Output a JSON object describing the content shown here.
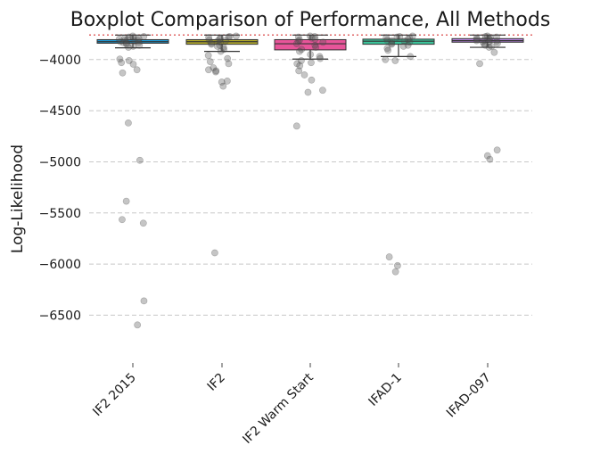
{
  "chart_data": {
    "type": "boxplot",
    "title": "Boxplot Comparison of Performance, All Methods",
    "xlabel": "",
    "ylabel": "Log-Likelihood",
    "ylim": [
      -6880,
      -3740
    ],
    "yticks": [
      -4000,
      -4500,
      -5000,
      -5500,
      -6000,
      -6500
    ],
    "ytick_labels": [
      "−4000",
      "−4500",
      "−5000",
      "−5500",
      "−6000",
      "−6500"
    ],
    "grid": "horizontal dashed",
    "reference_line": {
      "y": -3760,
      "style": "dotted",
      "color": "#e06666"
    },
    "categories": [
      "IF2 2015",
      "IF2",
      "IF2 Warm Start",
      "IFAD-1",
      "IFAD-097"
    ],
    "boxes": [
      {
        "name": "IF2 2015",
        "color": "#1f9ad6",
        "q1": -3840,
        "median": -3825,
        "q3": -3805,
        "whisker_low": -3885,
        "whisker_high": -3760,
        "points": [
          -3770,
          -3775,
          -3780,
          -3785,
          -3790,
          -3795,
          -3800,
          -3805,
          -3810,
          -3815,
          -3820,
          -3825,
          -3830,
          -3835,
          -3840,
          -3850,
          -3860,
          -3870,
          -3880,
          -3995,
          -4010,
          -4030,
          -4045,
          -4100,
          -4130,
          -4620,
          -4985,
          -5385,
          -5565,
          -5600,
          -6360,
          -6595
        ]
      },
      {
        "name": "IF2",
        "color": "#b5ad2c",
        "q1": -3850,
        "median": -3825,
        "q3": -3805,
        "whisker_low": -3920,
        "whisker_high": -3760,
        "points": [
          -3770,
          -3775,
          -3780,
          -3785,
          -3790,
          -3800,
          -3810,
          -3815,
          -3820,
          -3830,
          -3840,
          -3850,
          -3860,
          -3870,
          -3880,
          -3900,
          -3920,
          -3960,
          -3990,
          -4020,
          -4040,
          -4080,
          -4100,
          -4110,
          -4120,
          -4210,
          -4220,
          -4260,
          -5890
        ]
      },
      {
        "name": "IF2 Warm Start",
        "color": "#e8559a",
        "q1": -3905,
        "median": -3845,
        "q3": -3805,
        "whisker_low": -3995,
        "whisker_high": -3760,
        "points": [
          -3770,
          -3775,
          -3780,
          -3790,
          -3800,
          -3810,
          -3820,
          -3830,
          -3845,
          -3860,
          -3880,
          -3900,
          -3920,
          -3950,
          -3970,
          -3990,
          -4010,
          -4030,
          -4040,
          -4060,
          -4110,
          -4150,
          -4200,
          -4300,
          -4320,
          -4650
        ]
      },
      {
        "name": "IFAD-1",
        "color": "#3cc39a",
        "q1": -3850,
        "median": -3820,
        "q3": -3800,
        "whisker_low": -3970,
        "whisker_high": -3760,
        "points": [
          -3770,
          -3775,
          -3780,
          -3785,
          -3790,
          -3800,
          -3810,
          -3815,
          -3820,
          -3830,
          -3840,
          -3850,
          -3860,
          -3870,
          -3890,
          -3910,
          -3970,
          -4000,
          -4010,
          -5930,
          -6015,
          -6075
        ]
      },
      {
        "name": "IFAD-097",
        "color": "#b985e0",
        "q1": -3830,
        "median": -3815,
        "q3": -3795,
        "whisker_low": -3880,
        "whisker_high": -3760,
        "points": [
          -3770,
          -3775,
          -3780,
          -3785,
          -3790,
          -3795,
          -3800,
          -3805,
          -3810,
          -3815,
          -3820,
          -3825,
          -3830,
          -3840,
          -3850,
          -3860,
          -3870,
          -3880,
          -3930,
          -4040,
          -4885,
          -4940,
          -4975
        ]
      }
    ]
  }
}
